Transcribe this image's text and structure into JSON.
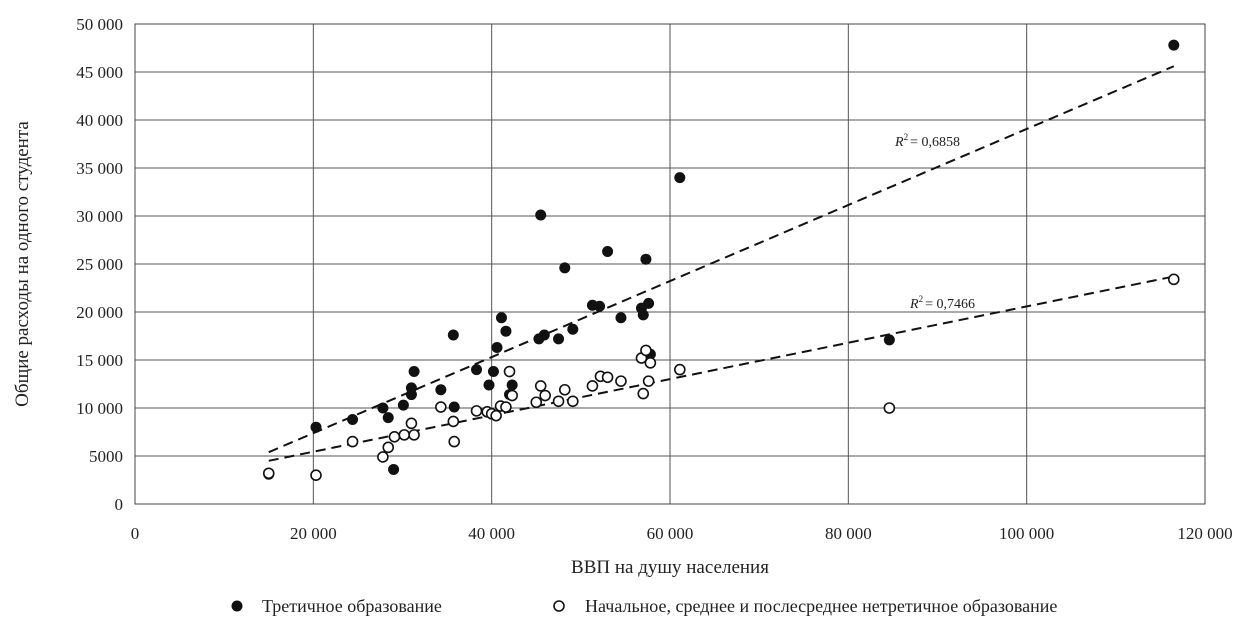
{
  "chart_data": {
    "type": "scatter",
    "xlabel": "ВВП на душу населения",
    "ylabel": "Общие расходы на одного студента",
    "xlim": [
      0,
      120000
    ],
    "ylim": [
      0,
      50000
    ],
    "x_ticks": [
      0,
      20000,
      40000,
      60000,
      80000,
      100000,
      120000
    ],
    "x_tick_labels": [
      "0",
      "20 000",
      "40 000",
      "60 000",
      "80 000",
      "100 000",
      "120 000"
    ],
    "y_ticks": [
      0,
      5000,
      10000,
      15000,
      20000,
      25000,
      30000,
      35000,
      40000,
      45000,
      50000
    ],
    "y_tick_labels": [
      "0",
      "5000",
      "10 000",
      "15 000",
      "20 000",
      "25 000",
      "30 000",
      "35 000",
      "40 000",
      "45 000",
      "50 000"
    ],
    "grid": true,
    "legend_position": "bottom",
    "series": [
      {
        "name": "Третичное образование",
        "marker": "filled-circle",
        "color": "#111111",
        "points": [
          [
            15000,
            3100
          ],
          [
            20300,
            8000
          ],
          [
            24400,
            8800
          ],
          [
            27800,
            10000
          ],
          [
            28400,
            9000
          ],
          [
            29000,
            3600
          ],
          [
            30100,
            10300
          ],
          [
            31000,
            12100
          ],
          [
            31000,
            11400
          ],
          [
            31300,
            13800
          ],
          [
            34300,
            11900
          ],
          [
            35700,
            17600
          ],
          [
            35800,
            10100
          ],
          [
            38300,
            14000
          ],
          [
            39700,
            12400
          ],
          [
            40200,
            13800
          ],
          [
            40600,
            16300
          ],
          [
            41100,
            19400
          ],
          [
            41600,
            18000
          ],
          [
            42000,
            11400
          ],
          [
            42300,
            12400
          ],
          [
            45300,
            17200
          ],
          [
            45500,
            30100
          ],
          [
            45900,
            17600
          ],
          [
            47500,
            17200
          ],
          [
            48200,
            24600
          ],
          [
            49100,
            18200
          ],
          [
            51300,
            20700
          ],
          [
            52100,
            20600
          ],
          [
            53000,
            26300
          ],
          [
            54500,
            19400
          ],
          [
            56800,
            20400
          ],
          [
            57000,
            19700
          ],
          [
            57300,
            25500
          ],
          [
            57600,
            20900
          ],
          [
            57800,
            15600
          ],
          [
            61100,
            34000
          ],
          [
            84600,
            17100
          ],
          [
            116500,
            47800
          ]
        ]
      },
      {
        "name": "Начальное, среднее и послесреднее нетретичное образование",
        "marker": "open-circle",
        "color": "#111111",
        "points": [
          [
            15000,
            3200
          ],
          [
            20300,
            3000
          ],
          [
            24400,
            6500
          ],
          [
            27800,
            4900
          ],
          [
            28400,
            5900
          ],
          [
            29100,
            7000
          ],
          [
            30200,
            7200
          ],
          [
            31000,
            8400
          ],
          [
            31300,
            7200
          ],
          [
            34300,
            10100
          ],
          [
            35700,
            8600
          ],
          [
            35800,
            6500
          ],
          [
            38300,
            9700
          ],
          [
            39500,
            9600
          ],
          [
            40000,
            9400
          ],
          [
            40500,
            9200
          ],
          [
            41000,
            10200
          ],
          [
            41600,
            10100
          ],
          [
            42000,
            13800
          ],
          [
            42300,
            11300
          ],
          [
            45000,
            10600
          ],
          [
            45500,
            12300
          ],
          [
            46000,
            11300
          ],
          [
            47500,
            10700
          ],
          [
            48200,
            11900
          ],
          [
            49100,
            10700
          ],
          [
            51300,
            12300
          ],
          [
            52200,
            13300
          ],
          [
            53000,
            13200
          ],
          [
            54500,
            12800
          ],
          [
            56800,
            15200
          ],
          [
            57000,
            11500
          ],
          [
            57300,
            16000
          ],
          [
            57600,
            12800
          ],
          [
            57800,
            14700
          ],
          [
            61100,
            14000
          ],
          [
            84600,
            10000
          ],
          [
            116500,
            23400
          ]
        ]
      }
    ],
    "trendlines": [
      {
        "series": "Третичное образование",
        "x": [
          15000,
          116500
        ],
        "y": [
          5400,
          45600
        ],
        "label": "= 0,6858"
      },
      {
        "series": "Начальное, среднее и послесреднее нетретичное образование",
        "x": [
          15000,
          116500
        ],
        "y": [
          4500,
          23700
        ],
        "label": "= 0,7466"
      }
    ]
  }
}
